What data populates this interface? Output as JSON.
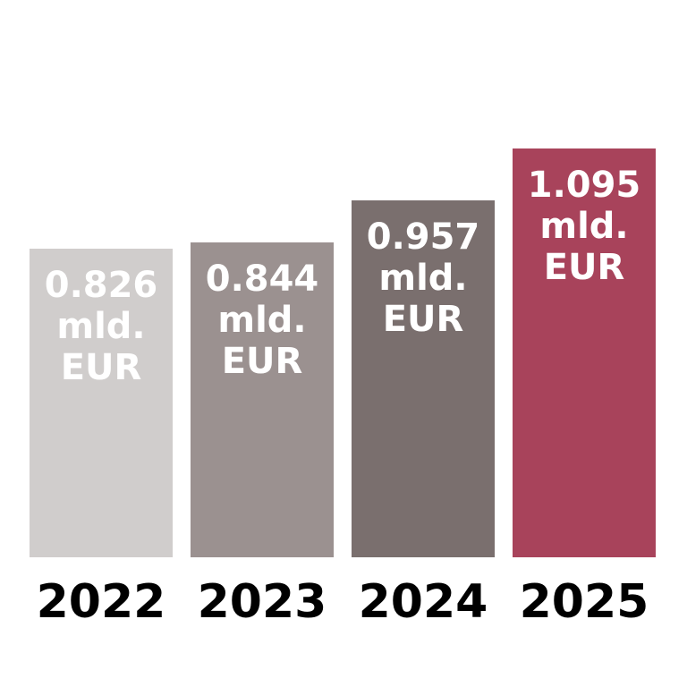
{
  "chart_data": {
    "type": "bar",
    "categories": [
      "2022",
      "2023",
      "2024",
      "2025"
    ],
    "values": [
      0.826,
      0.844,
      0.957,
      1.095
    ],
    "value_labels": [
      "0.826 mld. EUR",
      "0.844 mld. EUR",
      "0.957 mld. EUR",
      "1.095 mld. EUR"
    ],
    "colors": [
      "#d0cdcc",
      "#9b9190",
      "#7a6f6e",
      "#a8435b"
    ]
  }
}
